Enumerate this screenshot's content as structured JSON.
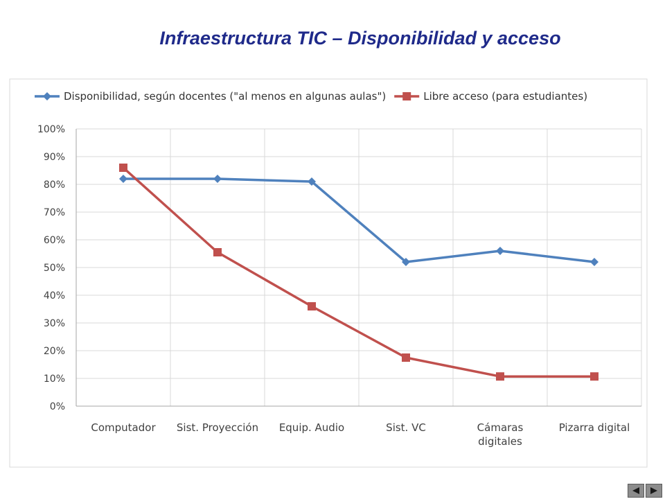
{
  "slide": {
    "title": "Infraestructura TIC – Disponibilidad y acceso"
  },
  "chart_data": {
    "type": "line",
    "categories": [
      "Computador",
      "Sist. Proyección",
      "Equip. Audio",
      "Sist. VC",
      "Cámaras digitales",
      "Pizarra digital"
    ],
    "series": [
      {
        "name": "Disponibilidad, según docentes (\"al menos en algunas aulas\")",
        "color": "#4f81bd",
        "marker": "diamond",
        "values": [
          0.82,
          0.82,
          0.81,
          0.52,
          0.56,
          0.52
        ]
      },
      {
        "name": "Libre acceso (para estudiantes)",
        "color": "#c0504d",
        "marker": "square",
        "values": [
          0.86,
          0.555,
          0.36,
          0.175,
          0.107,
          0.107
        ]
      }
    ],
    "ylim": [
      0,
      1
    ],
    "yticks": [
      "0%",
      "10%",
      "20%",
      "30%",
      "40%",
      "50%",
      "60%",
      "70%",
      "80%",
      "90%",
      "100%"
    ],
    "grid": true,
    "legend_position": "top"
  },
  "nav": {
    "prev_icon": "triangle-left-icon",
    "next_icon": "triangle-right-icon"
  }
}
